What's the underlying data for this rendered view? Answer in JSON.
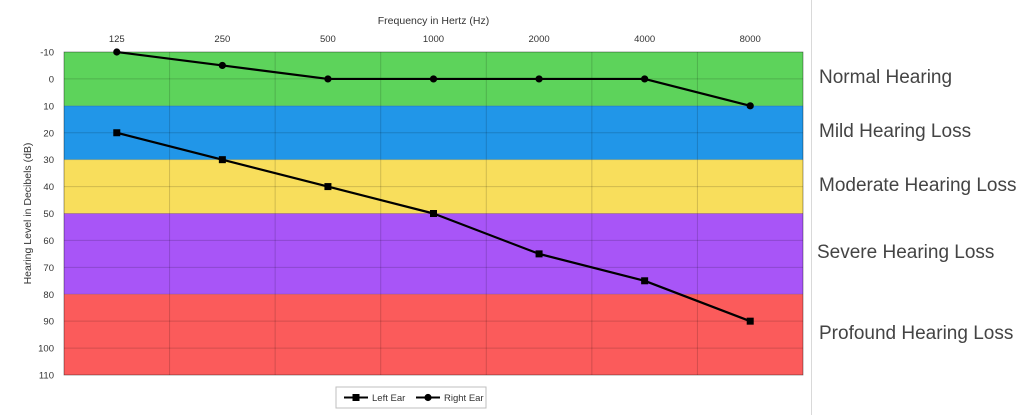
{
  "chart_data": {
    "type": "line",
    "xlabel": "Frequency in Hertz (Hz)",
    "ylabel": "Hearing Level in Decibels (dB)",
    "x_categories": [
      "125",
      "250",
      "500",
      "1000",
      "2000",
      "4000",
      "8000"
    ],
    "y_ticks": [
      "-10",
      "0",
      "10",
      "20",
      "30",
      "40",
      "50",
      "60",
      "70",
      "80",
      "90",
      "100",
      "110"
    ],
    "ylim": [
      -10,
      110
    ],
    "y_inverted": true,
    "x_axis_position": "top",
    "grid": true,
    "legend_position": "bottom-center",
    "bands": [
      {
        "label": "Normal Hearing",
        "from": -10,
        "to": 10,
        "color": "#5dd35b"
      },
      {
        "label": "Mild Hearing Loss",
        "from": 10,
        "to": 30,
        "color": "#2196e8"
      },
      {
        "label": "Moderate Hearing Loss",
        "from": 30,
        "to": 50,
        "color": "#f8de5c"
      },
      {
        "label": "Severe Hearing Loss",
        "from": 50,
        "to": 80,
        "color": "#a855f7"
      },
      {
        "label": "Profound Hearing Loss",
        "from": 80,
        "to": 110,
        "color": "#fb5b5b"
      }
    ],
    "series": [
      {
        "name": "Left Ear",
        "marker": "square",
        "color": "#000000",
        "values": [
          20,
          30,
          40,
          50,
          65,
          75,
          90
        ]
      },
      {
        "name": "Right Ear",
        "marker": "circle",
        "color": "#000000",
        "values": [
          -10,
          -5,
          0,
          0,
          0,
          0,
          10
        ]
      }
    ]
  }
}
